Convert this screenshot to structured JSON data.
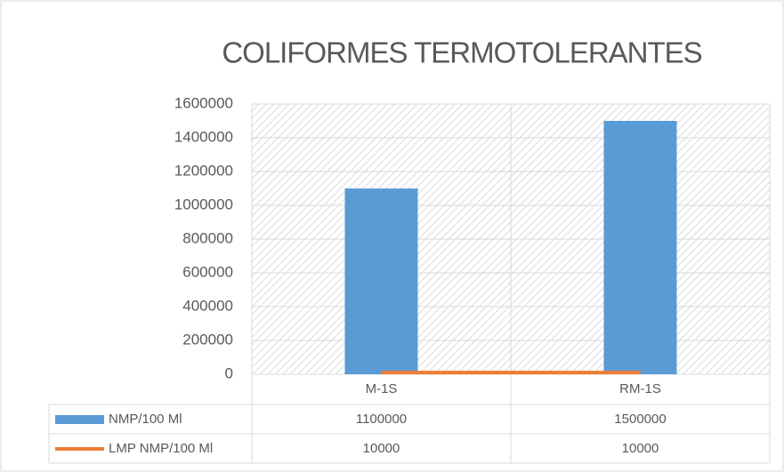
{
  "chart_data": {
    "type": "bar",
    "title": "COLIFORMES TERMOTOLERANTES",
    "categories": [
      "M-1S",
      "RM-1S"
    ],
    "series": [
      {
        "name": "NMP/100 Ml",
        "type": "bar",
        "color": "#5b9bd5",
        "values": [
          1100000,
          1500000
        ]
      },
      {
        "name": "LMP NMP/100 Ml",
        "type": "line",
        "color": "#ed7d31",
        "values": [
          10000,
          10000
        ]
      }
    ],
    "ylim": [
      0,
      1600000
    ],
    "yticks": [
      0,
      200000,
      400000,
      600000,
      800000,
      1000000,
      1200000,
      1400000,
      1600000
    ],
    "grid": true,
    "legend": "data-table"
  }
}
